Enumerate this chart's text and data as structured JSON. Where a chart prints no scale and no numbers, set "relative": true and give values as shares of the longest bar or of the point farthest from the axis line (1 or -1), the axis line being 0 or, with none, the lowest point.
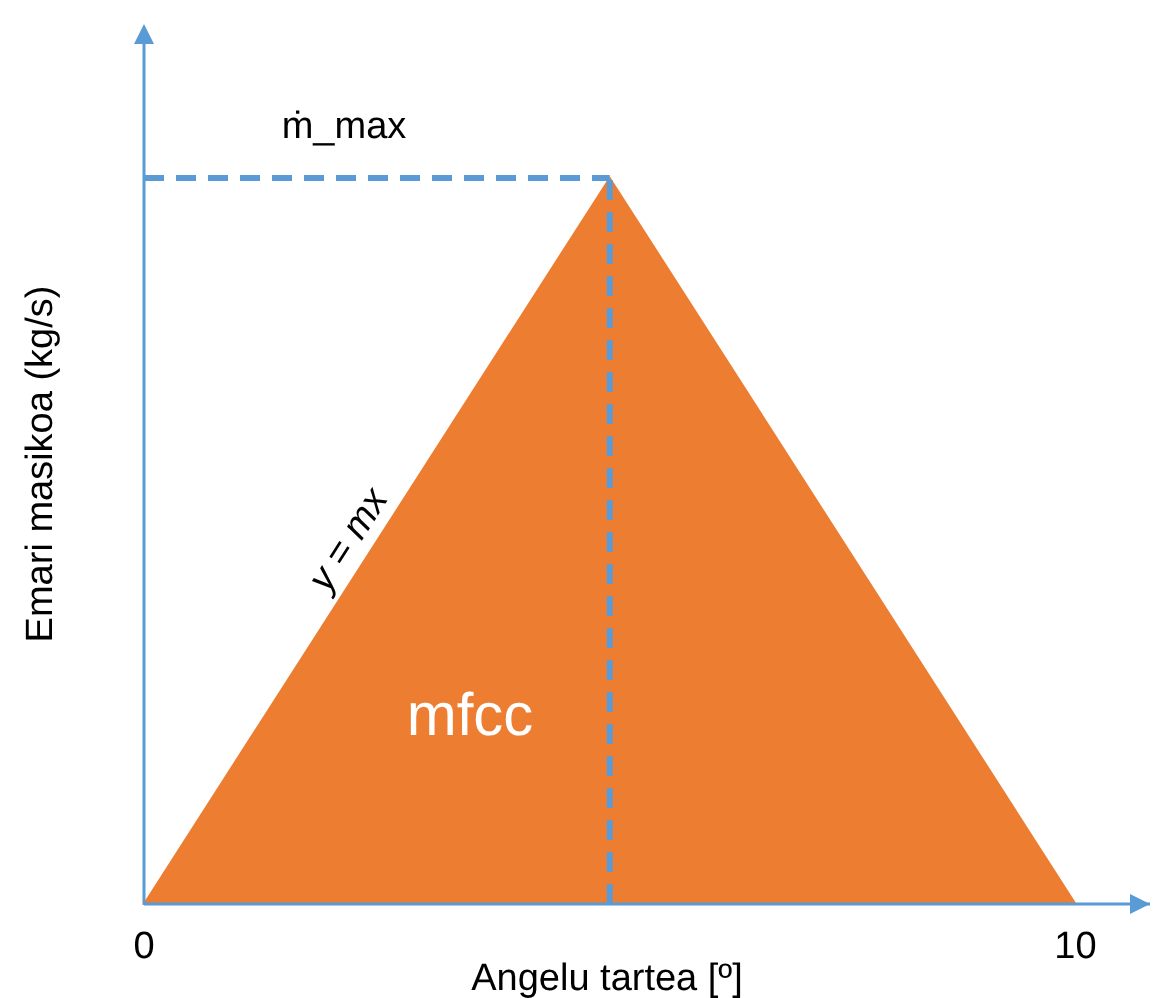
{
  "chart_data": {
    "type": "area",
    "relative": true,
    "xlabel": "Angelu tartea [º]",
    "ylabel": "Emari masikoa (kg/s)",
    "x": [
      0,
      5,
      10
    ],
    "series": [
      {
        "color": "#ed7d31",
        "values": [
          0,
          1,
          0
        ]
      }
    ],
    "xlim": [
      0,
      10.8
    ],
    "xticks": [
      0,
      10
    ],
    "ref_lines": [
      {
        "axis": "y",
        "value": 1,
        "label": "ṁ_max",
        "color": "#5b9bd5",
        "line_style": "dashed"
      },
      {
        "axis": "x",
        "value": 5,
        "color": "#5b9bd5",
        "line_style": "dashed"
      }
    ],
    "annotations": [
      "y = mx",
      "mfcc"
    ]
  }
}
